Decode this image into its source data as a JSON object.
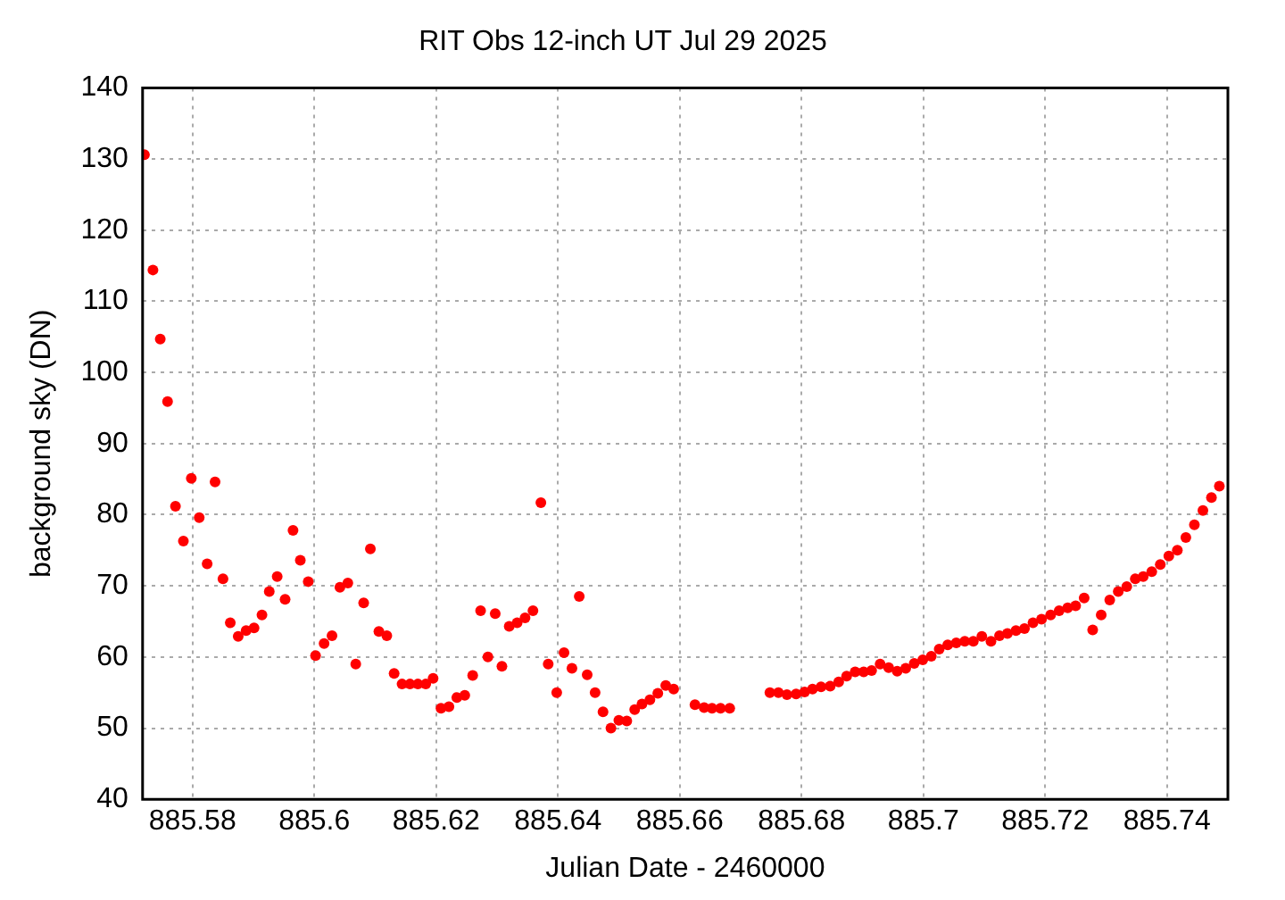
{
  "chart_data": {
    "type": "scatter",
    "title": "RIT Obs 12-inch UT Jul 29 2025",
    "xlabel": "Julian Date - 2460000",
    "ylabel": "background sky (DN)",
    "xlim": [
      885.5718,
      885.75
    ],
    "ylim": [
      40,
      140
    ],
    "xticks": [
      885.58,
      885.6,
      885.62,
      885.64,
      885.66,
      885.68,
      885.7,
      885.72,
      885.74
    ],
    "yticks": [
      40,
      50,
      60,
      70,
      80,
      90,
      100,
      110,
      120,
      130,
      140
    ],
    "grid": true,
    "legend": false,
    "marker": "circle",
    "series": [
      {
        "color": "#ff0000",
        "x": [
          885.5721,
          885.5735,
          885.5747,
          885.5759,
          885.5772,
          885.5785,
          885.5798,
          885.5811,
          885.5824,
          885.5837,
          885.585,
          885.5862,
          885.5875,
          885.5888,
          885.5901,
          885.5914,
          885.5926,
          885.5939,
          885.5952,
          885.5965,
          885.5977,
          885.599,
          885.6002,
          885.6016,
          885.6029,
          885.6042,
          885.6055,
          885.6068,
          885.6081,
          885.6092,
          885.6106,
          885.6119,
          885.6131,
          885.6144,
          885.6157,
          885.617,
          885.6183,
          885.6195,
          885.6208,
          885.6221,
          885.6234,
          885.6247,
          885.626,
          885.6273,
          885.6285,
          885.6297,
          885.6308,
          885.632,
          885.6333,
          885.6346,
          885.6359,
          885.6372,
          885.6384,
          885.6398,
          885.641,
          885.6423,
          885.6435,
          885.6448,
          885.6461,
          885.6474,
          885.6487,
          885.65,
          885.6513,
          885.6526,
          885.6538,
          885.6551,
          885.6564,
          885.6577,
          885.659,
          885.6625,
          885.664,
          885.6653,
          885.6667,
          885.6682,
          885.6748,
          885.6762,
          885.6776,
          885.6791,
          885.6805,
          885.6818,
          885.6832,
          885.6847,
          885.6861,
          885.6874,
          885.6888,
          885.6902,
          885.6915,
          885.6929,
          885.6943,
          885.6957,
          885.6971,
          885.6985,
          885.6999,
          885.7013,
          885.7026,
          885.704,
          885.7054,
          885.7068,
          885.7082,
          885.7096,
          885.7111,
          885.7125,
          885.7138,
          885.7152,
          885.7166,
          885.718,
          885.7194,
          885.7209,
          885.7223,
          885.7237,
          885.725,
          885.7264,
          885.7278,
          885.7292,
          885.7306,
          885.732,
          885.7334,
          885.7348,
          885.7361,
          885.7375,
          885.7389,
          885.7403,
          885.7417,
          885.7431,
          885.7445,
          885.7459,
          885.7473,
          885.7486
        ],
        "values": [
          130.6,
          114.4,
          104.7,
          95.9,
          81.2,
          76.3,
          85.1,
          79.6,
          73.1,
          84.6,
          71.0,
          64.8,
          62.9,
          63.7,
          64.1,
          65.9,
          69.2,
          71.3,
          68.1,
          77.8,
          73.6,
          70.6,
          60.2,
          61.9,
          63.0,
          69.8,
          70.4,
          59.0,
          67.6,
          75.2,
          63.6,
          63.0,
          57.7,
          56.2,
          56.2,
          56.2,
          56.2,
          57.0,
          52.8,
          53.0,
          54.3,
          54.6,
          57.4,
          66.5,
          60.0,
          66.1,
          58.7,
          64.3,
          64.8,
          65.5,
          66.5,
          81.7,
          59.0,
          55.0,
          60.6,
          58.4,
          68.5,
          57.5,
          55.0,
          52.3,
          50.0,
          51.1,
          51.0,
          52.6,
          53.4,
          54.0,
          54.9,
          56.0,
          55.5,
          53.3,
          52.9,
          52.8,
          52.8,
          52.8,
          55.0,
          55.0,
          54.7,
          54.8,
          55.1,
          55.5,
          55.8,
          55.9,
          56.5,
          57.3,
          57.9,
          57.9,
          58.1,
          59.0,
          58.5,
          58.0,
          58.4,
          59.1,
          59.6,
          60.1,
          61.1,
          61.7,
          62.0,
          62.2,
          62.2,
          62.9,
          62.2,
          63.0,
          63.3,
          63.7,
          64.0,
          64.8,
          65.3,
          65.9,
          66.5,
          66.9,
          67.2,
          68.3,
          63.8,
          65.9,
          68.0,
          69.2,
          69.9,
          71.0,
          71.3,
          72.0,
          73.0,
          74.2,
          75.0,
          76.8,
          78.6,
          80.6,
          82.4,
          84.0
        ]
      }
    ]
  }
}
